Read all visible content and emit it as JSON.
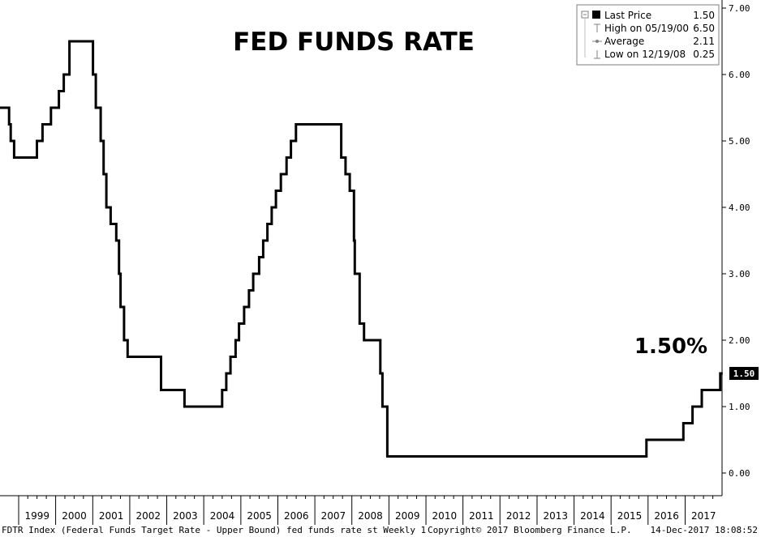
{
  "chart_data": {
    "type": "line",
    "title": "FED FUNDS RATE",
    "callout_label": "1.50%",
    "last_value_badge": "1.50",
    "ylim": [
      0,
      7
    ],
    "y_ticks": [
      "0.00",
      "1.00",
      "2.00",
      "3.00",
      "4.00",
      "5.00",
      "6.00",
      "7.00"
    ],
    "x_start": "1998-07-01",
    "x_end": "2017-12-31",
    "x_ticks": [
      "1999",
      "2000",
      "2001",
      "2002",
      "2003",
      "2004",
      "2005",
      "2006",
      "2007",
      "2008",
      "2009",
      "2010",
      "2011",
      "2012",
      "2013",
      "2014",
      "2015",
      "2016",
      "2017"
    ],
    "series": [
      {
        "points": [
          [
            "1998-07-01",
            5.5
          ],
          [
            "1998-09-29",
            5.25
          ],
          [
            "1998-10-15",
            5.0
          ],
          [
            "1998-11-17",
            4.75
          ],
          [
            "1999-06-30",
            5.0
          ],
          [
            "1999-08-24",
            5.25
          ],
          [
            "1999-11-16",
            5.5
          ],
          [
            "2000-02-02",
            5.75
          ],
          [
            "2000-03-21",
            6.0
          ],
          [
            "2000-05-16",
            6.5
          ],
          [
            "2001-01-03",
            6.0
          ],
          [
            "2001-01-31",
            5.5
          ],
          [
            "2001-03-20",
            5.0
          ],
          [
            "2001-04-18",
            4.5
          ],
          [
            "2001-05-15",
            4.0
          ],
          [
            "2001-06-27",
            3.75
          ],
          [
            "2001-08-21",
            3.5
          ],
          [
            "2001-09-17",
            3.0
          ],
          [
            "2001-10-02",
            2.5
          ],
          [
            "2001-11-06",
            2.0
          ],
          [
            "2001-12-11",
            1.75
          ],
          [
            "2002-11-06",
            1.25
          ],
          [
            "2003-06-25",
            1.0
          ],
          [
            "2004-06-30",
            1.25
          ],
          [
            "2004-08-10",
            1.5
          ],
          [
            "2004-09-21",
            1.75
          ],
          [
            "2004-11-10",
            2.0
          ],
          [
            "2004-12-14",
            2.25
          ],
          [
            "2005-02-02",
            2.5
          ],
          [
            "2005-03-22",
            2.75
          ],
          [
            "2005-05-03",
            3.0
          ],
          [
            "2005-06-30",
            3.25
          ],
          [
            "2005-08-09",
            3.5
          ],
          [
            "2005-09-20",
            3.75
          ],
          [
            "2005-11-01",
            4.0
          ],
          [
            "2005-12-13",
            4.25
          ],
          [
            "2006-01-31",
            4.5
          ],
          [
            "2006-03-28",
            4.75
          ],
          [
            "2006-05-10",
            5.0
          ],
          [
            "2006-06-29",
            5.25
          ],
          [
            "2007-09-18",
            4.75
          ],
          [
            "2007-10-31",
            4.5
          ],
          [
            "2007-12-11",
            4.25
          ],
          [
            "2008-01-22",
            3.5
          ],
          [
            "2008-01-30",
            3.0
          ],
          [
            "2008-03-18",
            2.25
          ],
          [
            "2008-04-30",
            2.0
          ],
          [
            "2008-10-08",
            1.5
          ],
          [
            "2008-10-29",
            1.0
          ],
          [
            "2008-12-16",
            0.25
          ],
          [
            "2015-12-16",
            0.5
          ],
          [
            "2016-12-14",
            0.75
          ],
          [
            "2017-03-15",
            1.0
          ],
          [
            "2017-06-14",
            1.25
          ],
          [
            "2017-12-13",
            1.5
          ]
        ]
      }
    ]
  },
  "legend": {
    "rows": [
      {
        "label": "Last Price",
        "value": "1.50",
        "marker": "square-icon"
      },
      {
        "label": "High on 05/19/00",
        "value": "6.50",
        "marker": "high-marker-icon"
      },
      {
        "label": "Average",
        "value": "2.11",
        "marker": "average-marker-icon"
      },
      {
        "label": "Low on 12/19/08",
        "value": "0.25",
        "marker": "low-marker-icon"
      }
    ]
  },
  "footer": {
    "left": "FDTR Index (Federal Funds Target Rate - Upper Bound) fed funds rate st  Weekly 1",
    "center": "Copyright© 2017 Bloomberg Finance L.P.",
    "right": "14-Dec-2017 18:08:52"
  },
  "colors": {
    "line": "#000000",
    "badge_bg": "#000000",
    "grid": "#bfbfbf",
    "legend_border": "#7f7f7f"
  }
}
